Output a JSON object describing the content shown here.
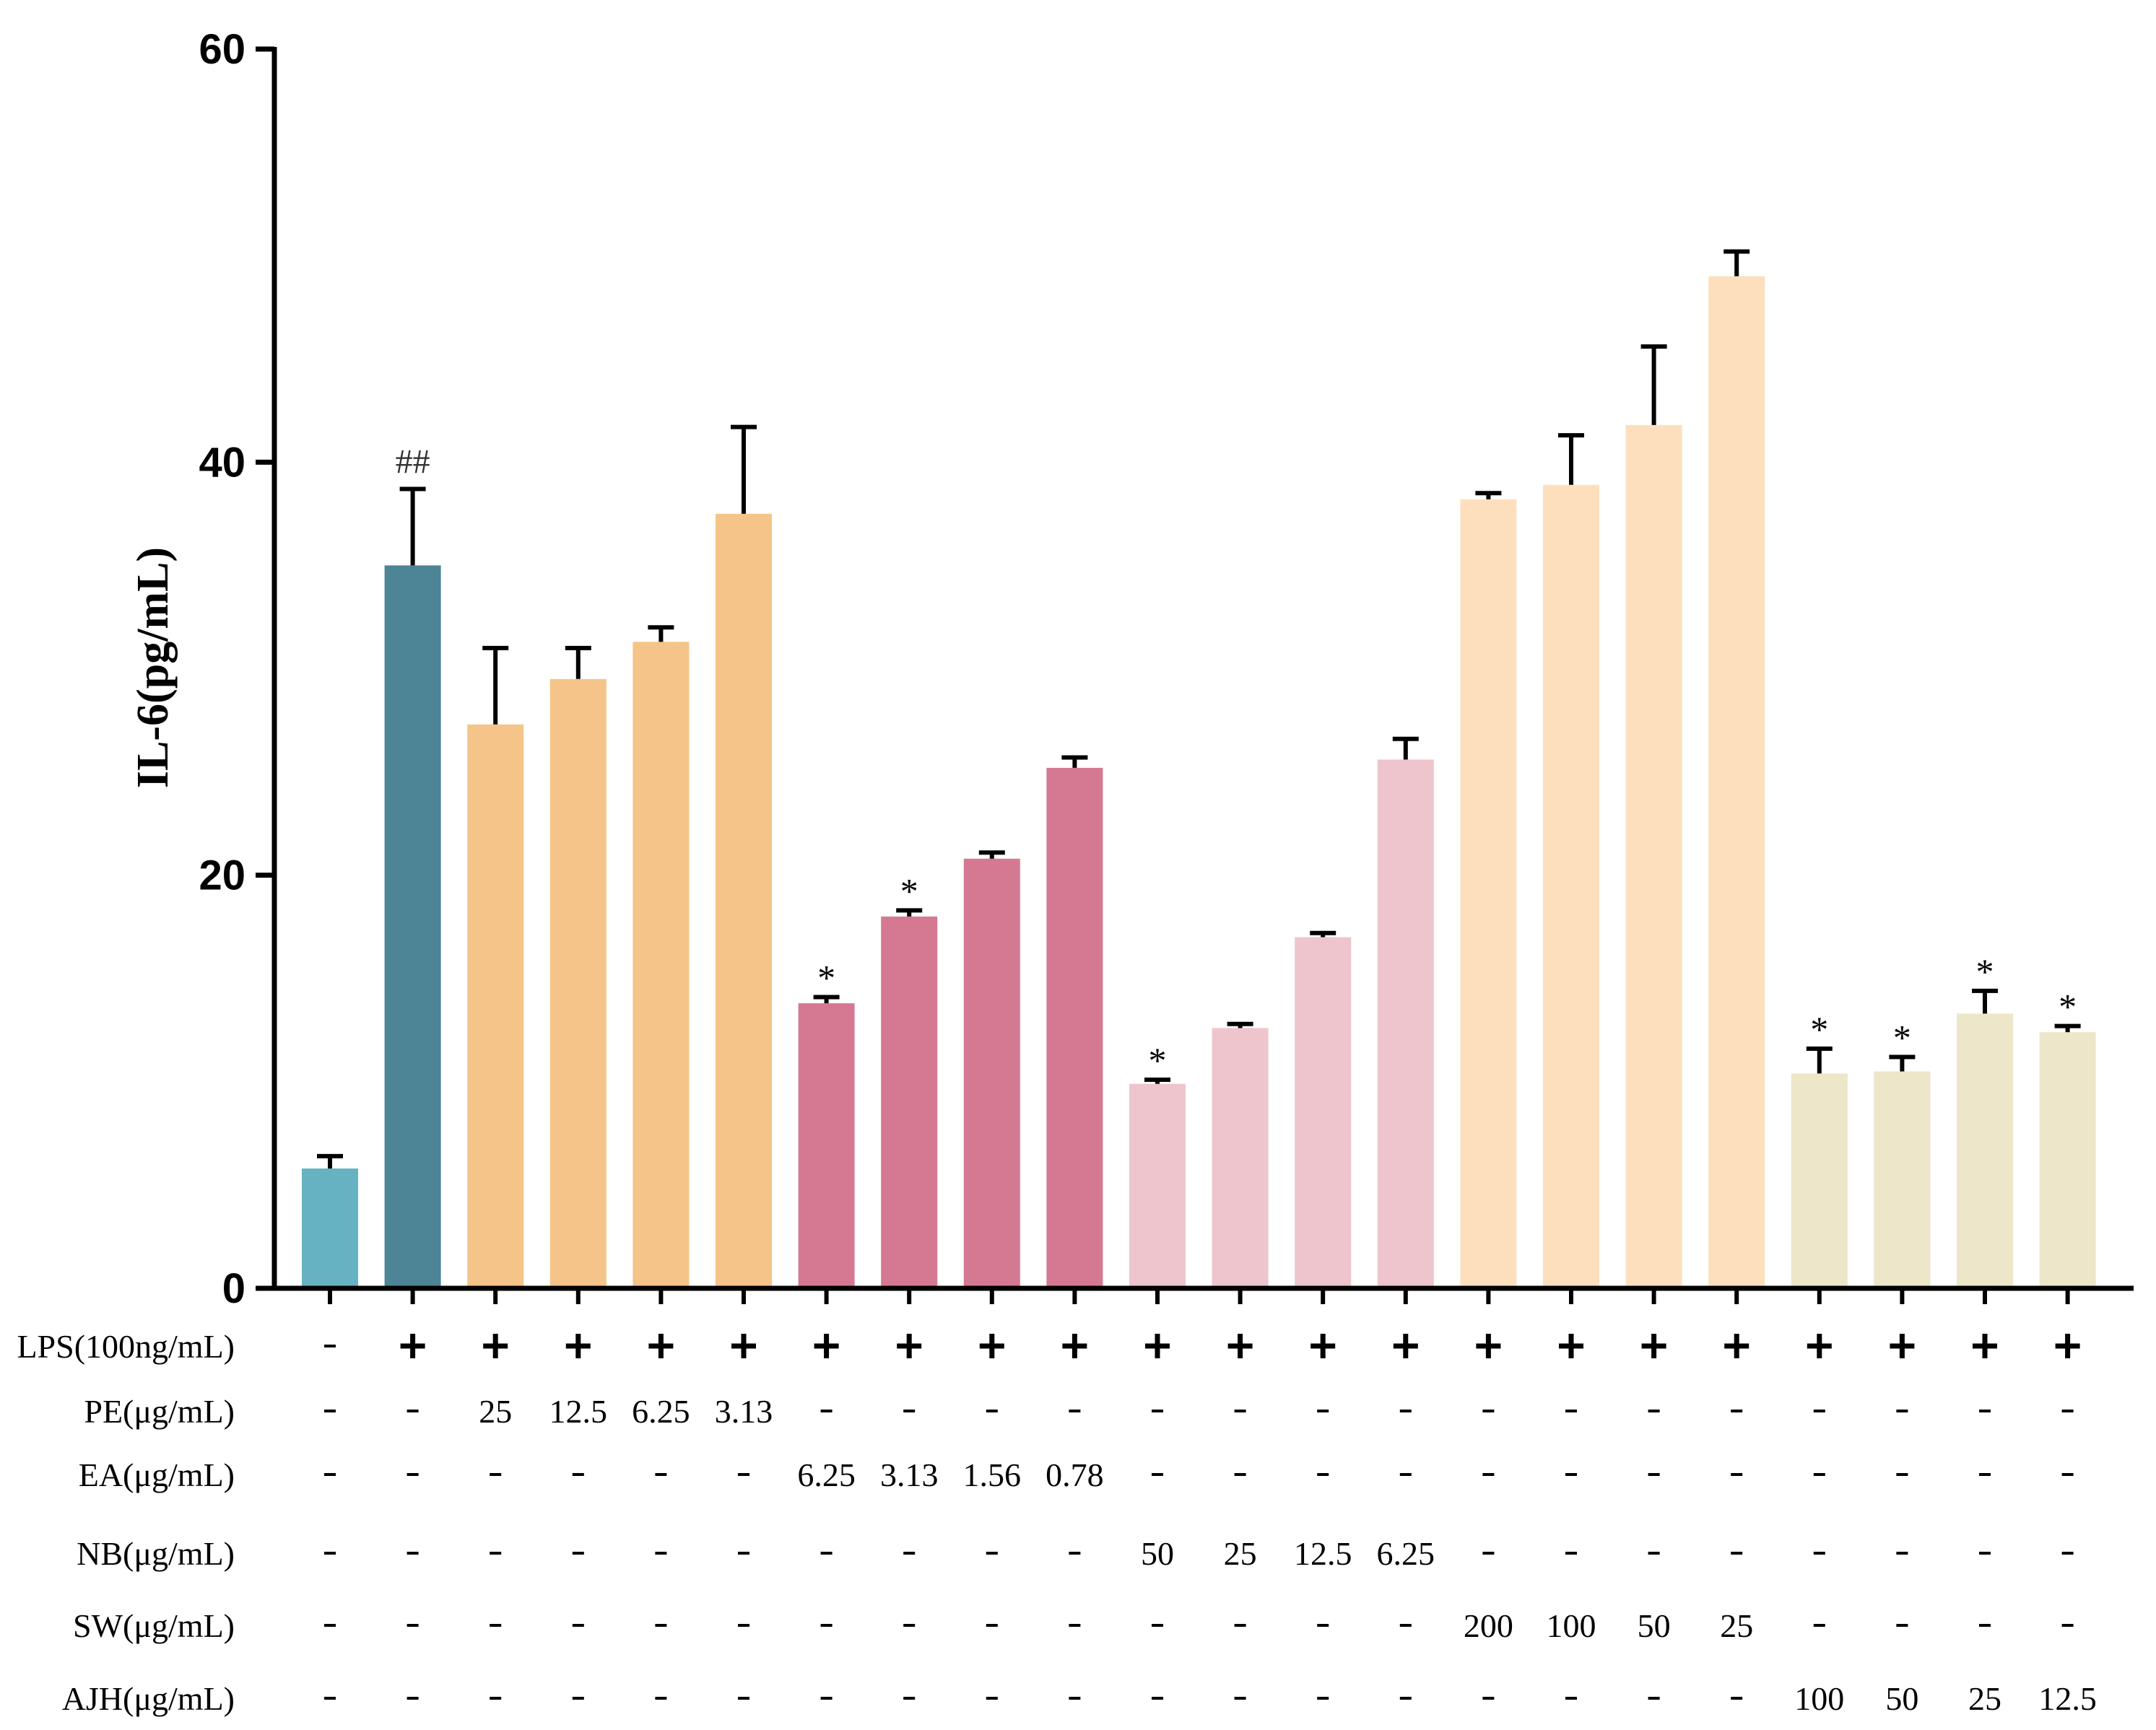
{
  "chart_data": {
    "type": "bar",
    "ylabel": "IL-6(pg/mL)",
    "ylim": [
      0,
      60
    ],
    "yticks": [
      0,
      20,
      40,
      60
    ],
    "series": [
      {
        "name": "IL-6",
        "values": [
          5.8,
          35.0,
          27.3,
          29.5,
          31.3,
          37.5,
          13.8,
          18.0,
          20.8,
          25.2,
          9.9,
          12.6,
          17.0,
          25.6,
          38.2,
          38.9,
          41.8,
          49.0,
          10.4,
          10.5,
          13.3,
          12.4
        ]
      }
    ],
    "errors": [
      0.6,
      3.7,
      3.7,
      1.5,
      0.7,
      4.2,
      0.3,
      0.3,
      0.3,
      0.5,
      0.2,
      0.2,
      0.2,
      1.0,
      0.3,
      2.4,
      3.8,
      1.2,
      1.2,
      0.7,
      1.1,
      0.3
    ],
    "colors": [
      "#66B2C2",
      "#4D8496",
      "#F5C488",
      "#F5C488",
      "#F5C488",
      "#F5C488",
      "#D57993",
      "#D57993",
      "#D57993",
      "#D57993",
      "#EEC5CC",
      "#EEC5CC",
      "#EEC5CC",
      "#EEC5CC",
      "#FDDFBE",
      "#FDDFBE",
      "#FDDFBE",
      "#FDDFBE",
      "#EDE6C8",
      "#EDE6C8",
      "#EDE6C8",
      "#EDE6C8"
    ],
    "annotations": [
      "",
      "##",
      "",
      "",
      "",
      "",
      "*",
      "*",
      "",
      "",
      "*",
      "",
      "",
      "",
      "",
      "",
      "",
      "",
      "*",
      "*",
      "*",
      "*"
    ],
    "treatment_rows": [
      {
        "label": "LPS(100ng/mL)",
        "cells": [
          "-",
          "+",
          "+",
          "+",
          "+",
          "+",
          "+",
          "+",
          "+",
          "+",
          "+",
          "+",
          "+",
          "+",
          "+",
          "+",
          "+",
          "+",
          "+",
          "+",
          "+",
          "+"
        ]
      },
      {
        "label": "PE(μg/mL)",
        "cells": [
          "-",
          "-",
          "25",
          "12.5",
          "6.25",
          "3.13",
          "-",
          "-",
          "-",
          "-",
          "-",
          "-",
          "-",
          "-",
          "-",
          "-",
          "-",
          "-",
          "-",
          "-",
          "-",
          "-"
        ]
      },
      {
        "label": "EA(μg/mL)",
        "cells": [
          "-",
          "-",
          "-",
          "-",
          "-",
          "-",
          "6.25",
          "3.13",
          "1.56",
          "0.78",
          "-",
          "-",
          "-",
          "-",
          "-",
          "-",
          "-",
          "-",
          "-",
          "-",
          "-",
          "-"
        ]
      },
      {
        "label": "NB(μg/mL)",
        "cells": [
          "-",
          "-",
          "-",
          "-",
          "-",
          "-",
          "-",
          "-",
          "-",
          "-",
          "50",
          "25",
          "12.5",
          "6.25",
          "-",
          "-",
          "-",
          "-",
          "-",
          "-",
          "-",
          "-"
        ]
      },
      {
        "label": "SW(μg/mL)",
        "cells": [
          "-",
          "-",
          "-",
          "-",
          "-",
          "-",
          "-",
          "-",
          "-",
          "-",
          "-",
          "-",
          "-",
          "-",
          "200",
          "100",
          "50",
          "25",
          "-",
          "-",
          "-",
          "-"
        ]
      },
      {
        "label": "AJH(μg/mL)",
        "cells": [
          "-",
          "-",
          "-",
          "-",
          "-",
          "-",
          "-",
          "-",
          "-",
          "-",
          "-",
          "-",
          "-",
          "-",
          "-",
          "-",
          "-",
          "-",
          "100",
          "50",
          "25",
          "12.5"
        ]
      }
    ]
  }
}
